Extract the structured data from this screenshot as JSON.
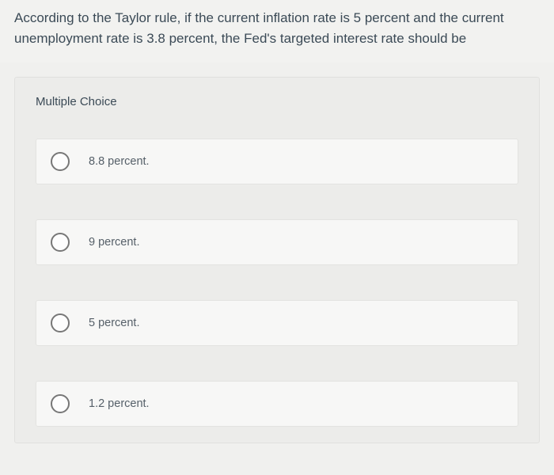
{
  "question": {
    "text": "According to the Taylor rule, if the current inflation rate is 5 percent and the current unemployment rate is 3.8 percent, the Fed's targeted interest rate should be",
    "text_color": "#3b4a56",
    "fontsize": 17
  },
  "panel": {
    "heading": "Multiple Choice",
    "background_color": "#ececea",
    "option_background": "#f7f7f6",
    "option_border": "#e3e3e1"
  },
  "options": [
    {
      "label": "8.8 percent."
    },
    {
      "label": "9 percent."
    },
    {
      "label": "5 percent."
    },
    {
      "label": "1.2 percent."
    }
  ],
  "radio": {
    "border_color": "#777777",
    "fill_color": "#fdfdfd"
  },
  "page": {
    "background_color": "#f0f0ee"
  }
}
